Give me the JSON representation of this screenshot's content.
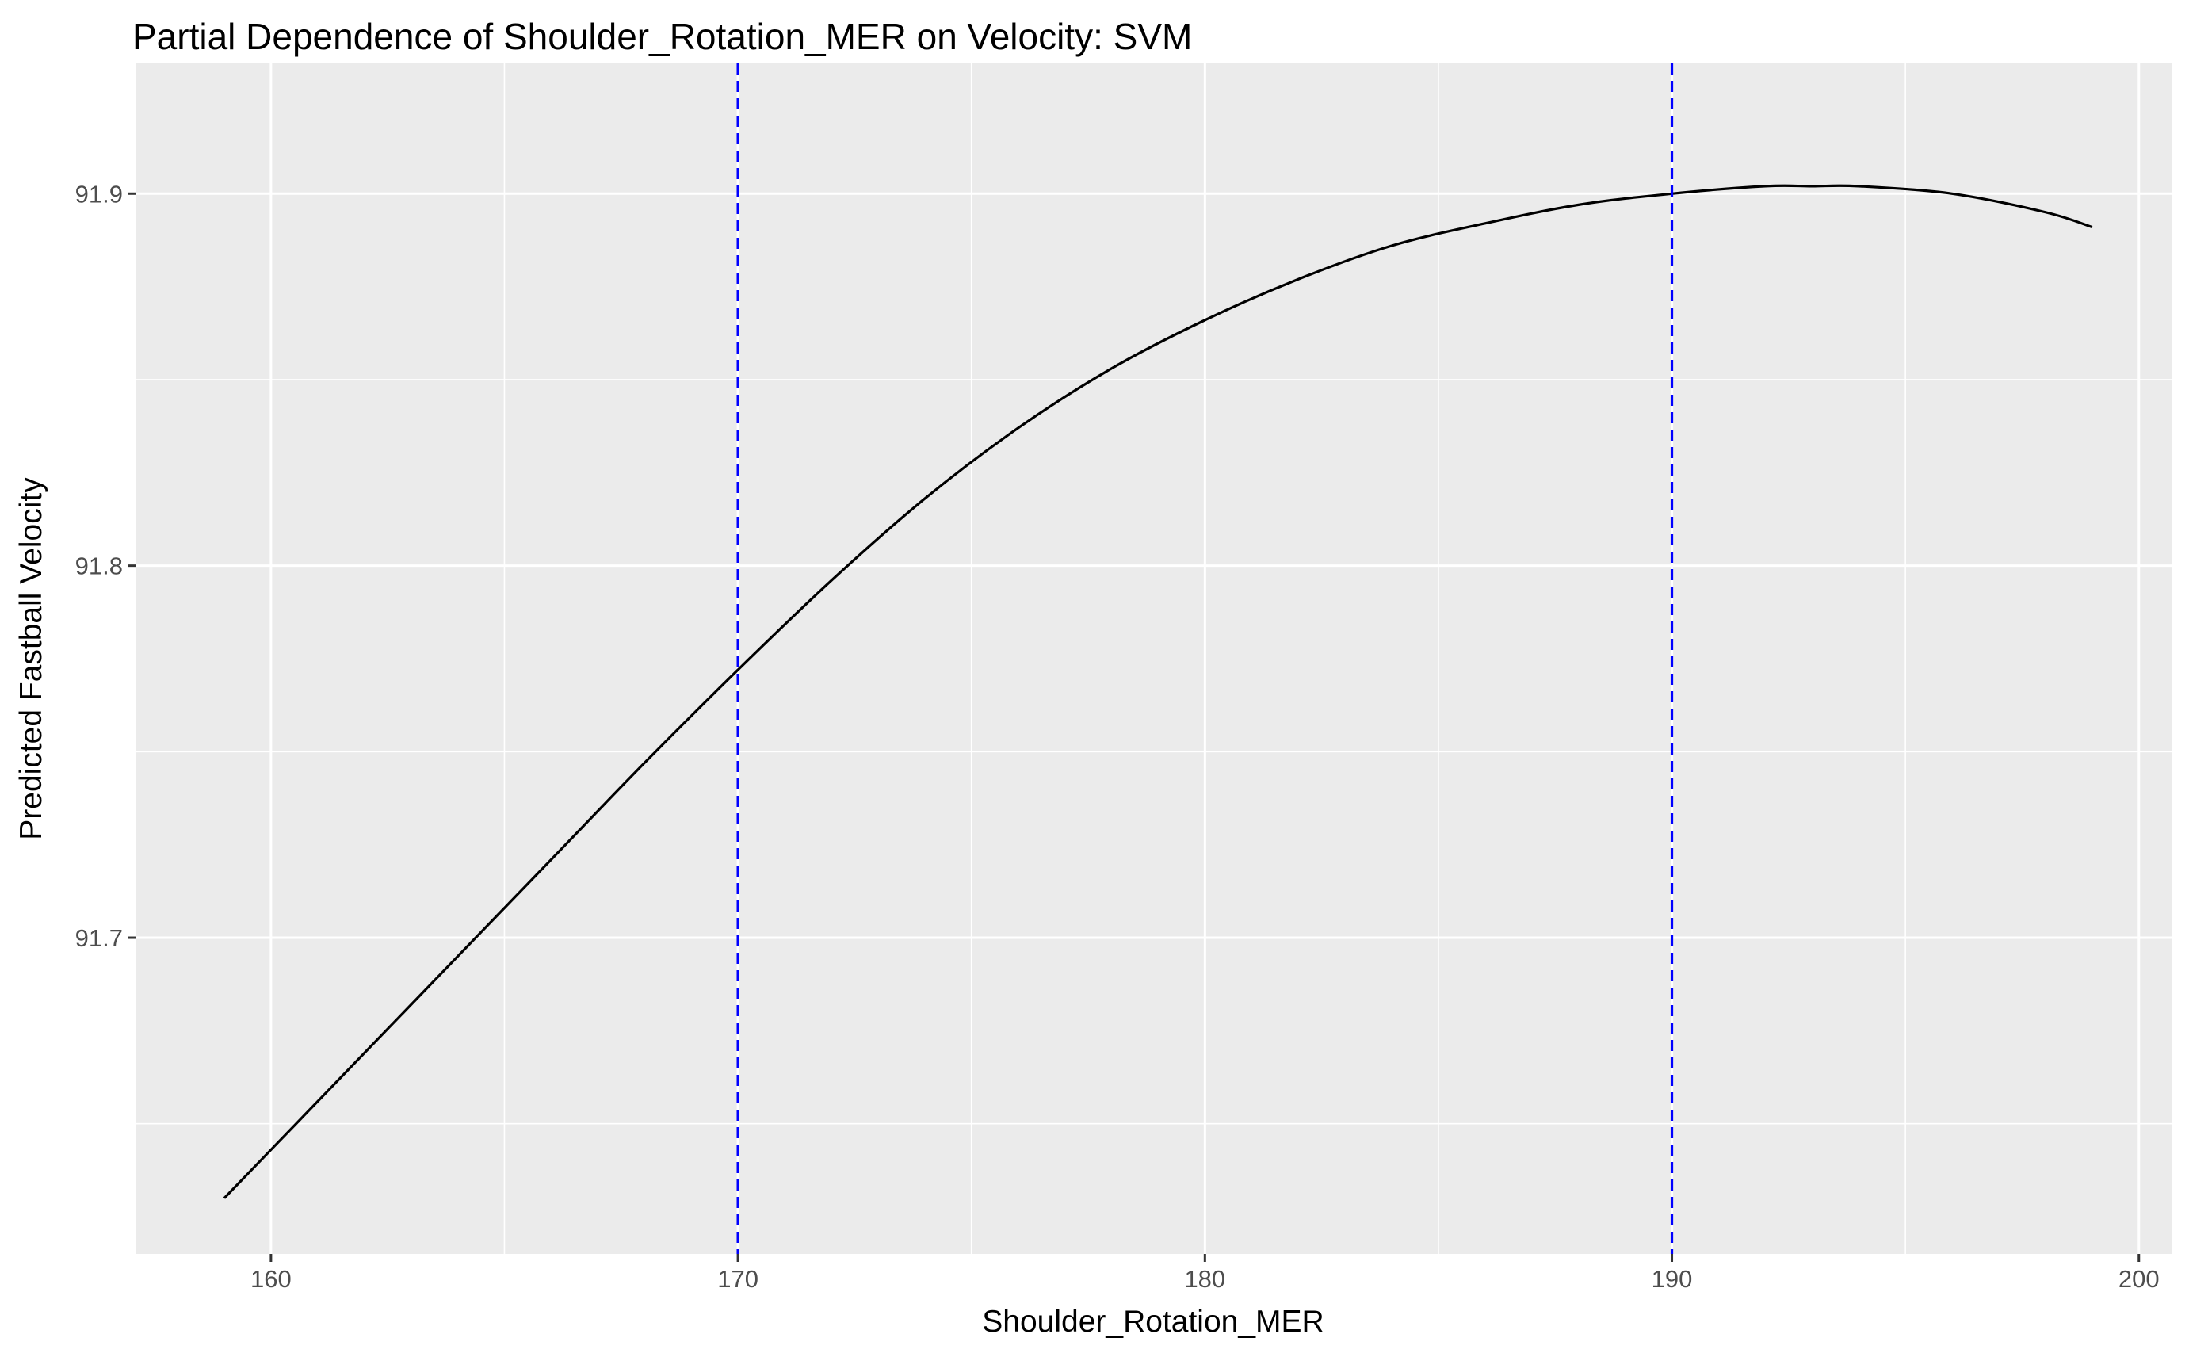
{
  "chart_data": {
    "type": "line",
    "title": "Partial Dependence of Shoulder_Rotation_MER on Velocity: SVM",
    "xlabel": "Shoulder_Rotation_MER",
    "ylabel": "Predicted Fastball Velocity",
    "xlim": [
      157.1,
      200.7
    ],
    "ylim": [
      91.615,
      91.935
    ],
    "x_ticks": [
      160,
      170,
      180,
      190,
      200
    ],
    "x_tick_labels": [
      "160",
      "170",
      "180",
      "190",
      "200"
    ],
    "y_ticks": [
      91.7,
      91.8,
      91.9
    ],
    "y_tick_labels": [
      "91.7",
      "91.8",
      "91.9"
    ],
    "grid": true,
    "legend": "none",
    "series": [
      {
        "color": "#000000",
        "x": [
          159.0,
          160.0,
          162.0,
          164.0,
          166.0,
          168.0,
          170.0,
          172.0,
          174.0,
          176.0,
          178.0,
          180.0,
          182.0,
          184.0,
          186.0,
          188.0,
          190.0,
          192.0,
          193.0,
          194.0,
          196.0,
          198.0,
          199.0
        ],
        "y": [
          91.63,
          91.643,
          91.669,
          91.695,
          91.721,
          91.747,
          91.772,
          91.796,
          91.818,
          91.837,
          91.853,
          91.866,
          91.877,
          91.886,
          91.892,
          91.897,
          91.9,
          91.902,
          91.902,
          91.902,
          91.9,
          91.895,
          91.891
        ]
      }
    ],
    "vlines": [
      {
        "x": 170,
        "color": "#0000ff",
        "style": "dashed"
      },
      {
        "x": 190,
        "color": "#0000ff",
        "style": "dashed"
      }
    ],
    "panel_color": "#ebebeb",
    "grid_color": "#ffffff"
  }
}
